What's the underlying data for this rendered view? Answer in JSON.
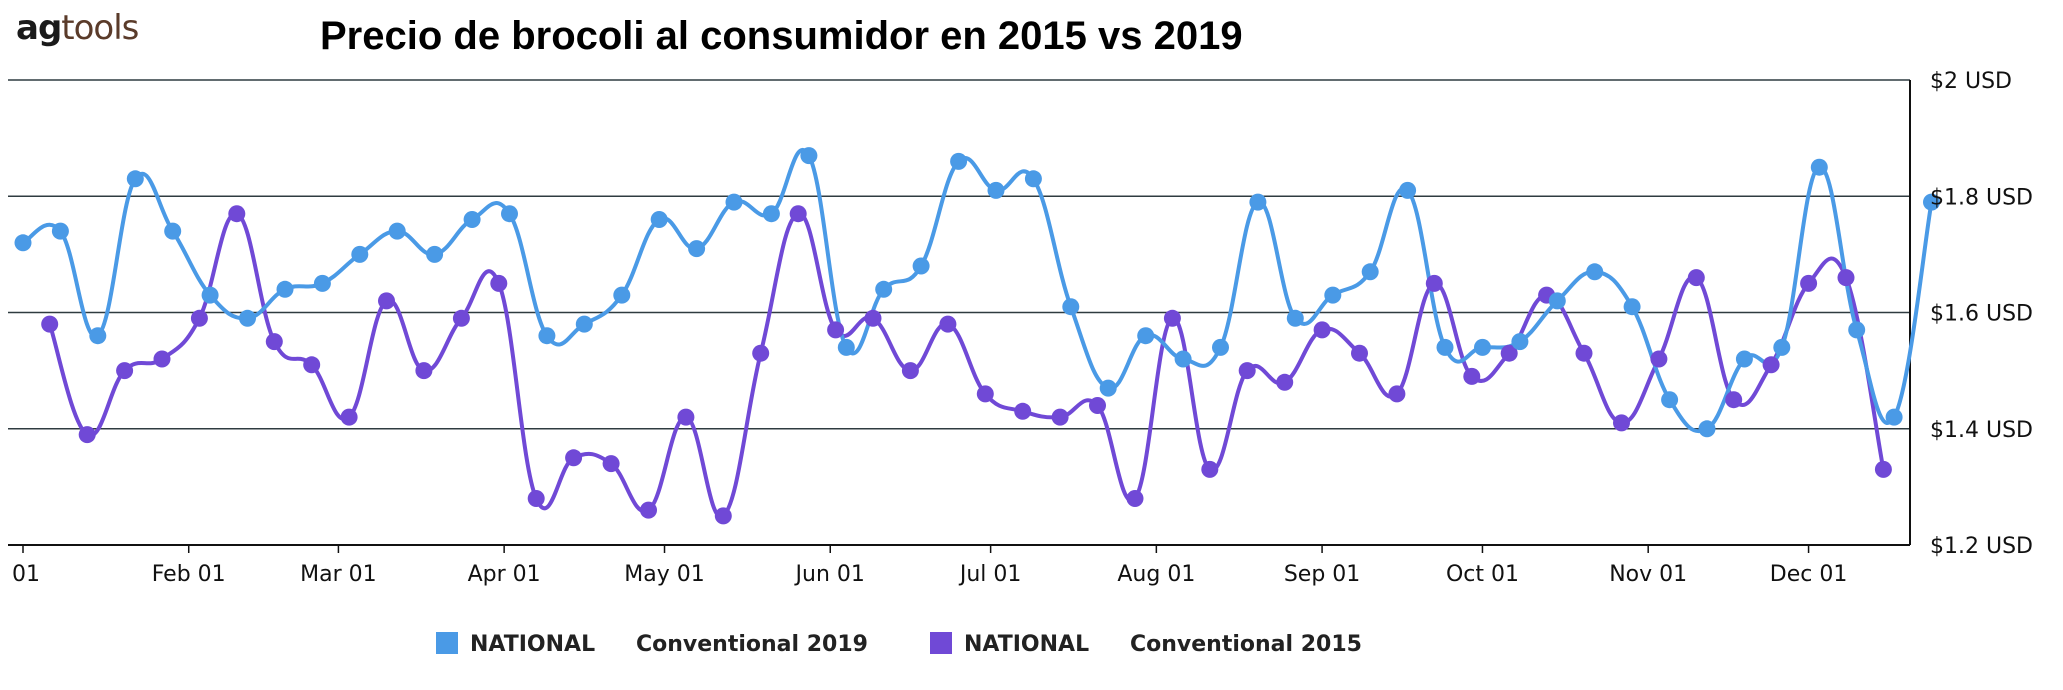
{
  "logo": {
    "part1": "ag",
    "part2": "tools"
  },
  "title": "Precio de brocoli al consumidor en 2015 vs 2019",
  "colors": {
    "series_2019": "#4a9ae6",
    "series_2015": "#7049d6",
    "grid": "#2f3b40",
    "axis": "#111111"
  },
  "chart_data": {
    "type": "line",
    "title": "Precio de brocoli al consumidor en 2015 vs 2019",
    "xlabel": "",
    "ylabel": "",
    "ylim": [
      1.2,
      2.0
    ],
    "y_ticks": [
      2.0,
      1.8,
      1.6,
      1.4,
      1.2
    ],
    "y_tick_labels": [
      "$2 USD",
      "$1.8 USD",
      "$1.6 USD",
      "$1.4 USD",
      "$1.2 USD"
    ],
    "y_axis_side": "right",
    "x_domain_days": [
      1,
      365
    ],
    "x_ticks": [
      {
        "label": "01",
        "day": 1
      },
      {
        "label": "Feb 01",
        "day": 32
      },
      {
        "label": "Mar 01",
        "day": 60
      },
      {
        "label": "Apr 01",
        "day": 91
      },
      {
        "label": "May 01",
        "day": 121
      },
      {
        "label": "Jun 01",
        "day": 152
      },
      {
        "label": "Jul 01",
        "day": 182
      },
      {
        "label": "Aug 01",
        "day": 213
      },
      {
        "label": "Sep 01",
        "day": 244
      },
      {
        "label": "Oct 01",
        "day": 274
      },
      {
        "label": "Nov 01",
        "day": 305
      },
      {
        "label": "Dec 01",
        "day": 335
      }
    ],
    "grid": true,
    "legend_position": "bottom",
    "series": [
      {
        "name": "NATIONAL Conventional 2019",
        "legend_parts": [
          "NATIONAL",
          "Conventional 2019"
        ],
        "color": "#4a9ae6",
        "x_day": [
          1,
          8,
          15,
          22,
          29,
          36,
          43,
          50,
          57,
          64,
          71,
          78,
          85,
          92,
          99,
          106,
          113,
          120,
          127,
          134,
          141,
          148,
          155,
          162,
          169,
          176,
          183,
          190,
          197,
          204,
          211,
          218,
          225,
          232,
          239,
          246,
          253,
          260,
          267,
          274,
          281,
          288,
          295,
          302,
          309,
          316,
          323,
          330,
          337,
          344,
          351,
          358
        ],
        "y": [
          1.72,
          1.74,
          1.56,
          1.83,
          1.74,
          1.63,
          1.59,
          1.64,
          1.65,
          1.7,
          1.74,
          1.7,
          1.76,
          1.77,
          1.56,
          1.58,
          1.63,
          1.76,
          1.71,
          1.79,
          1.77,
          1.87,
          1.54,
          1.64,
          1.68,
          1.86,
          1.81,
          1.83,
          1.61,
          1.47,
          1.56,
          1.52,
          1.54,
          1.79,
          1.59,
          1.63,
          1.67,
          1.81,
          1.54,
          1.54,
          1.55,
          1.62,
          1.67,
          1.61,
          1.45,
          1.4,
          1.52,
          1.54,
          1.85,
          1.57,
          1.42,
          1.79
        ]
      },
      {
        "name": "NATIONAL Conventional 2015",
        "legend_parts": [
          "NATIONAL",
          "Conventional 2015"
        ],
        "color": "#7049d6",
        "x_day": [
          6,
          13,
          20,
          27,
          34,
          41,
          48,
          55,
          62,
          69,
          76,
          83,
          90,
          97,
          104,
          111,
          118,
          125,
          132,
          139,
          146,
          153,
          160,
          167,
          174,
          181,
          188,
          195,
          202,
          209,
          216,
          223,
          230,
          237,
          244,
          251,
          258,
          265,
          272,
          279,
          286,
          293,
          300,
          307,
          314,
          321,
          328,
          335,
          342,
          349
        ],
        "y": [
          1.58,
          1.39,
          1.5,
          1.52,
          1.59,
          1.77,
          1.55,
          1.51,
          1.42,
          1.62,
          1.5,
          1.59,
          1.65,
          1.28,
          1.35,
          1.34,
          1.26,
          1.42,
          1.25,
          1.53,
          1.77,
          1.57,
          1.59,
          1.5,
          1.58,
          1.46,
          1.43,
          1.42,
          1.44,
          1.28,
          1.59,
          1.33,
          1.5,
          1.48,
          1.57,
          1.53,
          1.46,
          1.65,
          1.49,
          1.53,
          1.63,
          1.53,
          1.41,
          1.52,
          1.66,
          1.45,
          1.51,
          1.65,
          1.66,
          1.33
        ]
      }
    ]
  }
}
